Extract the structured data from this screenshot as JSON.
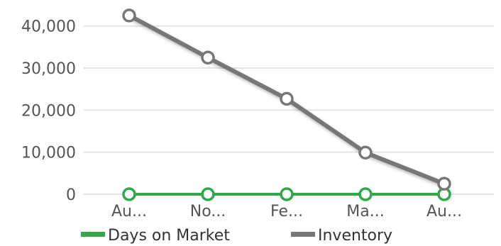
{
  "chart_data": {
    "type": "line",
    "categories": [
      "Au...",
      "No...",
      "Fe...",
      "Ma...",
      "Au..."
    ],
    "series": [
      {
        "name": "Days on Market",
        "color": "#2ea84a",
        "values": [
          0,
          0,
          0,
          0,
          0
        ]
      },
      {
        "name": "Inventory",
        "color": "#777777",
        "values": [
          42500,
          32500,
          22700,
          9900,
          2500
        ]
      }
    ],
    "y_ticks": [
      "0",
      "10,000",
      "20,000",
      "30,000",
      "40,000"
    ],
    "y_tick_values": [
      0,
      10000,
      20000,
      30000,
      40000
    ],
    "ylim": [
      0,
      44000
    ],
    "grid": true,
    "legend_position": "bottom"
  }
}
